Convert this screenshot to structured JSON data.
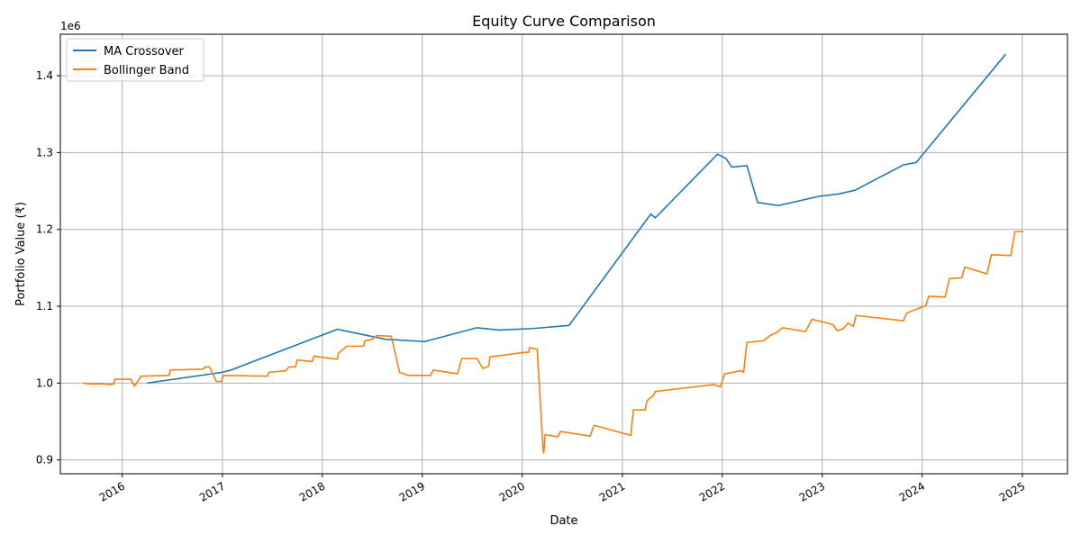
{
  "chart_data": {
    "type": "line",
    "title": "Equity Curve Comparison",
    "xlabel": "Date",
    "ylabel": "Portfolio Value (₹)",
    "y_offset_label": "1e6",
    "y_multiplier": 1000000,
    "grid": true,
    "legend_position": "upper-left",
    "x_range": [
      "2015-05-20",
      "2025-06-15"
    ],
    "y_range": [
      0.882,
      1.454
    ],
    "x_ticks": [
      {
        "date": "2016-01-01",
        "label": "2016"
      },
      {
        "date": "2017-01-01",
        "label": "2017"
      },
      {
        "date": "2018-01-01",
        "label": "2018"
      },
      {
        "date": "2019-01-01",
        "label": "2019"
      },
      {
        "date": "2020-01-01",
        "label": "2020"
      },
      {
        "date": "2021-01-01",
        "label": "2021"
      },
      {
        "date": "2022-01-01",
        "label": "2022"
      },
      {
        "date": "2023-01-01",
        "label": "2023"
      },
      {
        "date": "2024-01-01",
        "label": "2024"
      },
      {
        "date": "2025-01-01",
        "label": "2025"
      }
    ],
    "y_ticks": [
      {
        "value": 0.9,
        "label": "0.9"
      },
      {
        "value": 1.0,
        "label": "1.0"
      },
      {
        "value": 1.1,
        "label": "1.1"
      },
      {
        "value": 1.2,
        "label": "1.2"
      },
      {
        "value": 1.3,
        "label": "1.3"
      },
      {
        "value": 1.4,
        "label": "1.4"
      }
    ],
    "series": [
      {
        "name": "MA Crossover",
        "color": "#1f77b4",
        "points": [
          [
            "2016-04-01",
            1.0
          ],
          [
            "2017-01-01",
            1.014
          ],
          [
            "2017-02-01",
            1.017
          ],
          [
            "2018-02-25",
            1.07
          ],
          [
            "2018-08-20",
            1.057
          ],
          [
            "2019-01-10",
            1.054
          ],
          [
            "2019-07-20",
            1.072
          ],
          [
            "2019-10-10",
            1.069
          ],
          [
            "2020-02-10",
            1.071
          ],
          [
            "2020-06-20",
            1.075
          ],
          [
            "2021-04-15",
            1.22
          ],
          [
            "2021-05-01",
            1.215
          ],
          [
            "2021-12-15",
            1.298
          ],
          [
            "2022-01-15",
            1.292
          ],
          [
            "2022-02-05",
            1.281
          ],
          [
            "2022-04-01",
            1.283
          ],
          [
            "2022-05-10",
            1.235
          ],
          [
            "2022-07-25",
            1.231
          ],
          [
            "2022-12-20",
            1.243
          ],
          [
            "2023-03-01",
            1.246
          ],
          [
            "2023-05-01",
            1.251
          ],
          [
            "2023-10-25",
            1.284
          ],
          [
            "2023-12-10",
            1.287
          ],
          [
            "2024-11-01",
            1.428
          ]
        ]
      },
      {
        "name": "Bollinger Band",
        "color": "#ff7f0e",
        "points": [
          [
            "2015-08-10",
            1.0
          ],
          [
            "2015-09-01",
            0.999
          ],
          [
            "2015-10-20",
            0.999
          ],
          [
            "2015-11-20",
            0.998
          ],
          [
            "2015-12-01",
            0.999
          ],
          [
            "2015-12-05",
            1.005
          ],
          [
            "2016-02-01",
            1.005
          ],
          [
            "2016-02-15",
            0.996
          ],
          [
            "2016-03-10",
            1.009
          ],
          [
            "2016-06-20",
            1.01
          ],
          [
            "2016-06-25",
            1.017
          ],
          [
            "2016-10-20",
            1.018
          ],
          [
            "2016-11-01",
            1.021
          ],
          [
            "2016-11-15",
            1.021
          ],
          [
            "2016-12-10",
            1.002
          ],
          [
            "2016-12-28",
            1.002
          ],
          [
            "2017-01-05",
            1.01
          ],
          [
            "2017-06-15",
            1.009
          ],
          [
            "2017-06-20",
            1.014
          ],
          [
            "2017-08-20",
            1.016
          ],
          [
            "2017-09-01",
            1.021
          ],
          [
            "2017-09-25",
            1.021
          ],
          [
            "2017-10-01",
            1.03
          ],
          [
            "2017-11-25",
            1.028
          ],
          [
            "2017-12-01",
            1.035
          ],
          [
            "2018-02-01",
            1.032
          ],
          [
            "2018-02-25",
            1.031
          ],
          [
            "2018-03-01",
            1.039
          ],
          [
            "2018-04-01",
            1.048
          ],
          [
            "2018-06-01",
            1.048
          ],
          [
            "2018-06-05",
            1.055
          ],
          [
            "2018-07-01",
            1.057
          ],
          [
            "2018-07-20",
            1.062
          ],
          [
            "2018-09-01",
            1.061
          ],
          [
            "2018-09-10",
            1.061
          ],
          [
            "2018-10-10",
            1.014
          ],
          [
            "2018-11-10",
            1.01
          ],
          [
            "2019-01-20",
            1.01
          ],
          [
            "2019-02-01",
            1.01
          ],
          [
            "2019-02-10",
            1.017
          ],
          [
            "2019-05-10",
            1.012
          ],
          [
            "2019-05-25",
            1.032
          ],
          [
            "2019-07-20",
            1.032
          ],
          [
            "2019-08-10",
            1.019
          ],
          [
            "2019-09-01",
            1.022
          ],
          [
            "2019-09-05",
            1.034
          ],
          [
            "2020-01-10",
            1.04
          ],
          [
            "2020-01-25",
            1.04
          ],
          [
            "2020-01-28",
            1.046
          ],
          [
            "2020-02-25",
            1.044
          ],
          [
            "2020-03-18",
            0.911
          ],
          [
            "2020-03-20",
            0.909
          ],
          [
            "2020-03-25",
            0.933
          ],
          [
            "2020-05-10",
            0.93
          ],
          [
            "2020-05-20",
            0.937
          ],
          [
            "2020-09-05",
            0.931
          ],
          [
            "2020-09-20",
            0.945
          ],
          [
            "2021-02-01",
            0.932
          ],
          [
            "2021-02-10",
            0.965
          ],
          [
            "2021-03-25",
            0.965
          ],
          [
            "2021-04-01",
            0.977
          ],
          [
            "2021-04-25",
            0.984
          ],
          [
            "2021-05-01",
            0.989
          ],
          [
            "2021-12-01",
            0.998
          ],
          [
            "2021-12-25",
            0.995
          ],
          [
            "2022-01-10",
            1.012
          ],
          [
            "2022-03-10",
            1.016
          ],
          [
            "2022-03-20",
            1.014
          ],
          [
            "2022-04-01",
            1.053
          ],
          [
            "2022-06-01",
            1.055
          ],
          [
            "2022-06-25",
            1.062
          ],
          [
            "2022-07-20",
            1.066
          ],
          [
            "2022-08-10",
            1.072
          ],
          [
            "2022-11-01",
            1.067
          ],
          [
            "2022-11-25",
            1.083
          ],
          [
            "2023-02-10",
            1.076
          ],
          [
            "2023-02-25",
            1.068
          ],
          [
            "2023-03-20",
            1.071
          ],
          [
            "2023-04-05",
            1.078
          ],
          [
            "2023-04-25",
            1.074
          ],
          [
            "2023-05-05",
            1.088
          ],
          [
            "2023-10-25",
            1.081
          ],
          [
            "2023-11-05",
            1.091
          ],
          [
            "2024-01-15",
            1.101
          ],
          [
            "2024-01-25",
            1.113
          ],
          [
            "2024-03-25",
            1.112
          ],
          [
            "2024-04-10",
            1.136
          ],
          [
            "2024-05-25",
            1.137
          ],
          [
            "2024-06-05",
            1.151
          ],
          [
            "2024-08-25",
            1.142
          ],
          [
            "2024-09-10",
            1.167
          ],
          [
            "2024-11-20",
            1.166
          ],
          [
            "2024-12-05",
            1.197
          ],
          [
            "2025-01-05",
            1.197
          ]
        ]
      }
    ]
  }
}
